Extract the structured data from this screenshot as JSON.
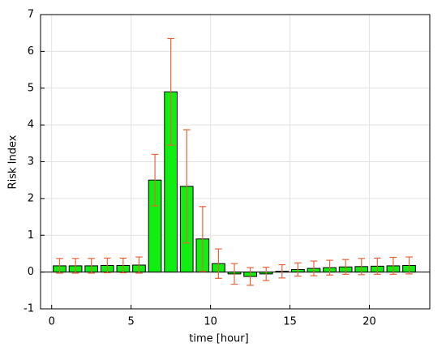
{
  "chart_data": {
    "type": "bar",
    "xlabel": "time [hour]",
    "ylabel": "Risk Index",
    "x": [
      0.5,
      1.5,
      2.5,
      3.5,
      4.5,
      5.5,
      6.5,
      7.5,
      8.5,
      9.5,
      10.5,
      11.5,
      12.5,
      13.5,
      14.5,
      15.5,
      16.5,
      17.5,
      18.5,
      19.5,
      20.5,
      21.5,
      22.5
    ],
    "values": [
      0.17,
      0.17,
      0.17,
      0.18,
      0.18,
      0.19,
      2.5,
      4.9,
      2.33,
      0.9,
      0.23,
      -0.05,
      -0.12,
      -0.05,
      0.02,
      0.07,
      0.1,
      0.12,
      0.14,
      0.15,
      0.16,
      0.17,
      0.18
    ],
    "errors": [
      0.2,
      0.2,
      0.2,
      0.2,
      0.2,
      0.22,
      0.7,
      1.45,
      1.54,
      0.88,
      0.4,
      0.28,
      0.24,
      0.18,
      0.18,
      0.18,
      0.2,
      0.2,
      0.2,
      0.22,
      0.22,
      0.23,
      0.23
    ],
    "color": "#11ee11",
    "error_color": "#e8643a",
    "xlim": [
      -0.7,
      23.8
    ],
    "xticks": [
      0,
      5,
      10,
      15,
      20
    ],
    "ylim": [
      -1,
      7
    ],
    "yticks": [
      -1,
      0,
      1,
      2,
      3,
      4,
      5,
      6,
      7
    ],
    "grid": true
  }
}
